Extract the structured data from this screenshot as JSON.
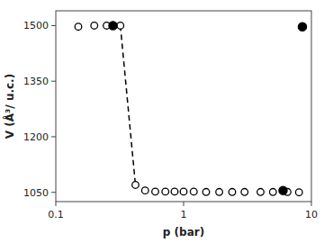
{
  "chart_data": {
    "type": "scatter",
    "xlabel": "p (bar)",
    "ylabel": "V (Å³/ u.c.)",
    "log": "x",
    "xlim": [
      0.1,
      10
    ],
    "ylim": [
      1025,
      1540
    ],
    "xticks": [
      0.1,
      1,
      10
    ],
    "yticks": [
      1050,
      1200,
      1350,
      1500
    ],
    "grid": false,
    "series": [
      {
        "type": "line",
        "color": "#000000",
        "line_style": "dashed",
        "x": [
          0.32,
          0.42
        ],
        "values": [
          1500,
          1070
        ]
      },
      {
        "type": "scatter",
        "color": "#000000",
        "marker": "open-circle",
        "x": [
          0.15,
          0.2,
          0.25,
          0.32,
          0.42,
          0.5,
          0.6,
          0.72,
          0.85,
          1.0,
          1.2,
          1.5,
          1.9,
          2.4,
          3.0,
          4.0,
          5.0,
          6.5,
          8.0
        ],
        "values": [
          1497,
          1500,
          1500,
          1500,
          1070,
          1055,
          1052,
          1052,
          1052,
          1052,
          1052,
          1051,
          1051,
          1051,
          1051,
          1051,
          1051,
          1051,
          1050
        ]
      },
      {
        "type": "scatter",
        "color": "#000000",
        "marker": "circle",
        "x": [
          0.28,
          6.0,
          8.5
        ],
        "values": [
          1500,
          1055,
          1497
        ]
      }
    ]
  }
}
